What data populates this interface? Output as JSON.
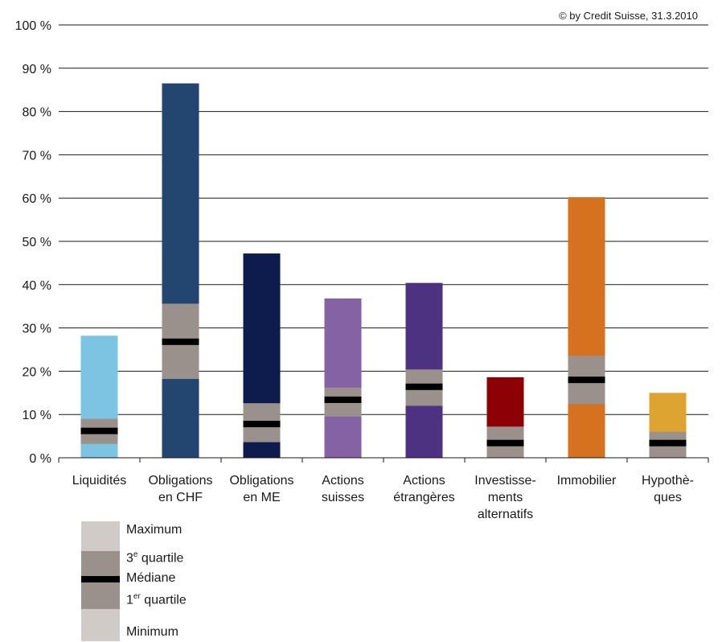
{
  "copyright": "© by Credit Suisse, 31.3.2010",
  "chart_data": {
    "type": "bar",
    "ylim": [
      0,
      100
    ],
    "yticks": [
      0,
      10,
      20,
      30,
      40,
      50,
      60,
      70,
      80,
      90,
      100
    ],
    "ytick_labels": [
      "0 %",
      "10 %",
      "20 %",
      "30 %",
      "40 %",
      "50 %",
      "60 %",
      "70 %",
      "80 %",
      "90 %",
      "100 %"
    ],
    "grid": true,
    "categories": [
      {
        "lines": [
          "Liquidités"
        ],
        "color": "#7cc4e2",
        "min": 3.2,
        "q1": 5.2,
        "median": 6.2,
        "q3": 9.0,
        "max": 28.2
      },
      {
        "lines": [
          "Obligations",
          "en CHF"
        ],
        "color": "#234670",
        "min": 18.2,
        "q1": 26.0,
        "median": 26.8,
        "q3": 35.6,
        "max": 86.5
      },
      {
        "lines": [
          "Obligations",
          "en ME"
        ],
        "color": "#0d1c4c",
        "min": 3.6,
        "q1": 7.0,
        "median": 7.8,
        "q3": 12.6,
        "max": 47.2
      },
      {
        "lines": [
          "Actions",
          "suisses"
        ],
        "color": "#8562a3",
        "min": 9.5,
        "q1": 12.6,
        "median": 13.4,
        "q3": 16.2,
        "max": 36.8
      },
      {
        "lines": [
          "Actions",
          "étrangères"
        ],
        "color": "#4d3281",
        "min": 12.0,
        "q1": 15.8,
        "median": 16.4,
        "q3": 20.4,
        "max": 40.4
      },
      {
        "lines": [
          "Investisse-",
          "ments",
          "alternatifs"
        ],
        "color": "#8d0005",
        "min": 0,
        "q1": 2.8,
        "median": 3.4,
        "q3": 7.2,
        "max": 18.6
      },
      {
        "lines": [
          "Immobilier"
        ],
        "color": "#d6711f",
        "min": 12.4,
        "q1": 17.2,
        "median": 18.0,
        "q3": 23.6,
        "max": 60.2
      },
      {
        "lines": [
          "Hypothè-",
          "ques"
        ],
        "color": "#dea432",
        "min": 0,
        "q1": 2.8,
        "median": 3.4,
        "q3": 6.0,
        "max": 15.0
      }
    ],
    "quartile_color": "#9b918c",
    "median_color": "#000000",
    "legend": {
      "maximum": "Maximum",
      "q3": "3",
      "q3_sup": "e",
      "q3_rest": " quartile",
      "median": "Médiane",
      "q1": "1",
      "q1_sup": "er",
      "q1_rest": " quartile",
      "minimum": "Minimum",
      "light_color": "#d1cbc8"
    }
  }
}
